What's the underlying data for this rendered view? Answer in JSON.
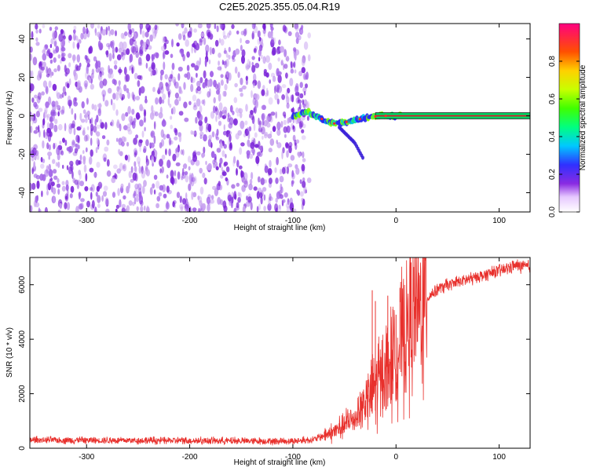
{
  "title": "C2E5.2025.355.05.04.R19",
  "chart_data": [
    {
      "type": "heatmap",
      "xlabel": "Height of straight line (km)",
      "ylabel": "Frequency (Hz)",
      "xlim": [
        -355,
        130
      ],
      "ylim": [
        -50,
        48
      ],
      "x_ticks": [
        -300,
        -200,
        -100,
        0,
        100
      ],
      "y_ticks": [
        -40,
        -20,
        0,
        20,
        40
      ],
      "x_tick_labels": [
        "-300",
        "-200",
        "-100",
        "0",
        "100"
      ],
      "y_tick_labels": [
        "-40",
        "-20",
        "0",
        "20",
        "40"
      ],
      "noise_region_x": [
        -355,
        -88
      ],
      "signal_trace": [
        {
          "x": -100,
          "f": 0
        },
        {
          "x": -85,
          "f": 2
        },
        {
          "x": -75,
          "f": -1
        },
        {
          "x": -60,
          "f": -4
        },
        {
          "x": -45,
          "f": -3
        },
        {
          "x": -30,
          "f": -1
        },
        {
          "x": -15,
          "f": 0
        },
        {
          "x": 5,
          "f": 0
        },
        {
          "x": 130,
          "f": 0
        }
      ],
      "branch_trace": [
        {
          "x": -55,
          "f": -6
        },
        {
          "x": -40,
          "f": -14
        },
        {
          "x": -32,
          "f": -22
        }
      ],
      "colorbar": {
        "label": "Normalized spectral amplitude",
        "ticks": [
          0.0,
          0.2,
          0.4,
          0.6,
          0.8
        ],
        "tick_labels": [
          "0.0",
          "0.2",
          "0.4",
          "0.6",
          "0.8"
        ],
        "range": [
          0,
          1
        ]
      }
    },
    {
      "type": "line",
      "xlabel": "Height of straight line (km)",
      "ylabel": "SNR (10 * v/v)",
      "xlim": [
        -355,
        130
      ],
      "ylim": [
        0,
        7000
      ],
      "x_ticks": [
        -300,
        -200,
        -100,
        0,
        100
      ],
      "y_ticks": [
        0,
        2000,
        4000,
        6000
      ],
      "x_tick_labels": [
        "-300",
        "-200",
        "-100",
        "0",
        "100"
      ],
      "y_tick_labels": [
        "0",
        "2000",
        "4000",
        "6000"
      ],
      "series": [
        {
          "name": "SNR",
          "color": "#e8302c",
          "envelope": [
            {
              "x": -355,
              "y": 300
            },
            {
              "x": -200,
              "y": 280
            },
            {
              "x": -100,
              "y": 260
            },
            {
              "x": -80,
              "y": 320
            },
            {
              "x": -60,
              "y": 600
            },
            {
              "x": -40,
              "y": 1100
            },
            {
              "x": -30,
              "y": 1700
            },
            {
              "x": -20,
              "y": 2300
            },
            {
              "x": -10,
              "y": 2900
            },
            {
              "x": 0,
              "y": 3500
            },
            {
              "x": 10,
              "y": 4300
            },
            {
              "x": 20,
              "y": 5000
            },
            {
              "x": 30,
              "y": 5500
            },
            {
              "x": 40,
              "y": 5850
            },
            {
              "x": 60,
              "y": 6100
            },
            {
              "x": 80,
              "y": 6300
            },
            {
              "x": 100,
              "y": 6500
            },
            {
              "x": 115,
              "y": 6700
            },
            {
              "x": 130,
              "y": 6650
            }
          ],
          "spikes": [
            {
              "x": -23,
              "y": 5800
            },
            {
              "x": -20,
              "y": 5400
            },
            {
              "x": -8,
              "y": 5600
            },
            {
              "x": 0,
              "y": 4900
            },
            {
              "x": -3,
              "y": 5100
            }
          ]
        }
      ]
    }
  ],
  "colors": {
    "noise": "#7a22d8",
    "noise_light": "#c9a4f0",
    "trace": "#e8302c"
  }
}
